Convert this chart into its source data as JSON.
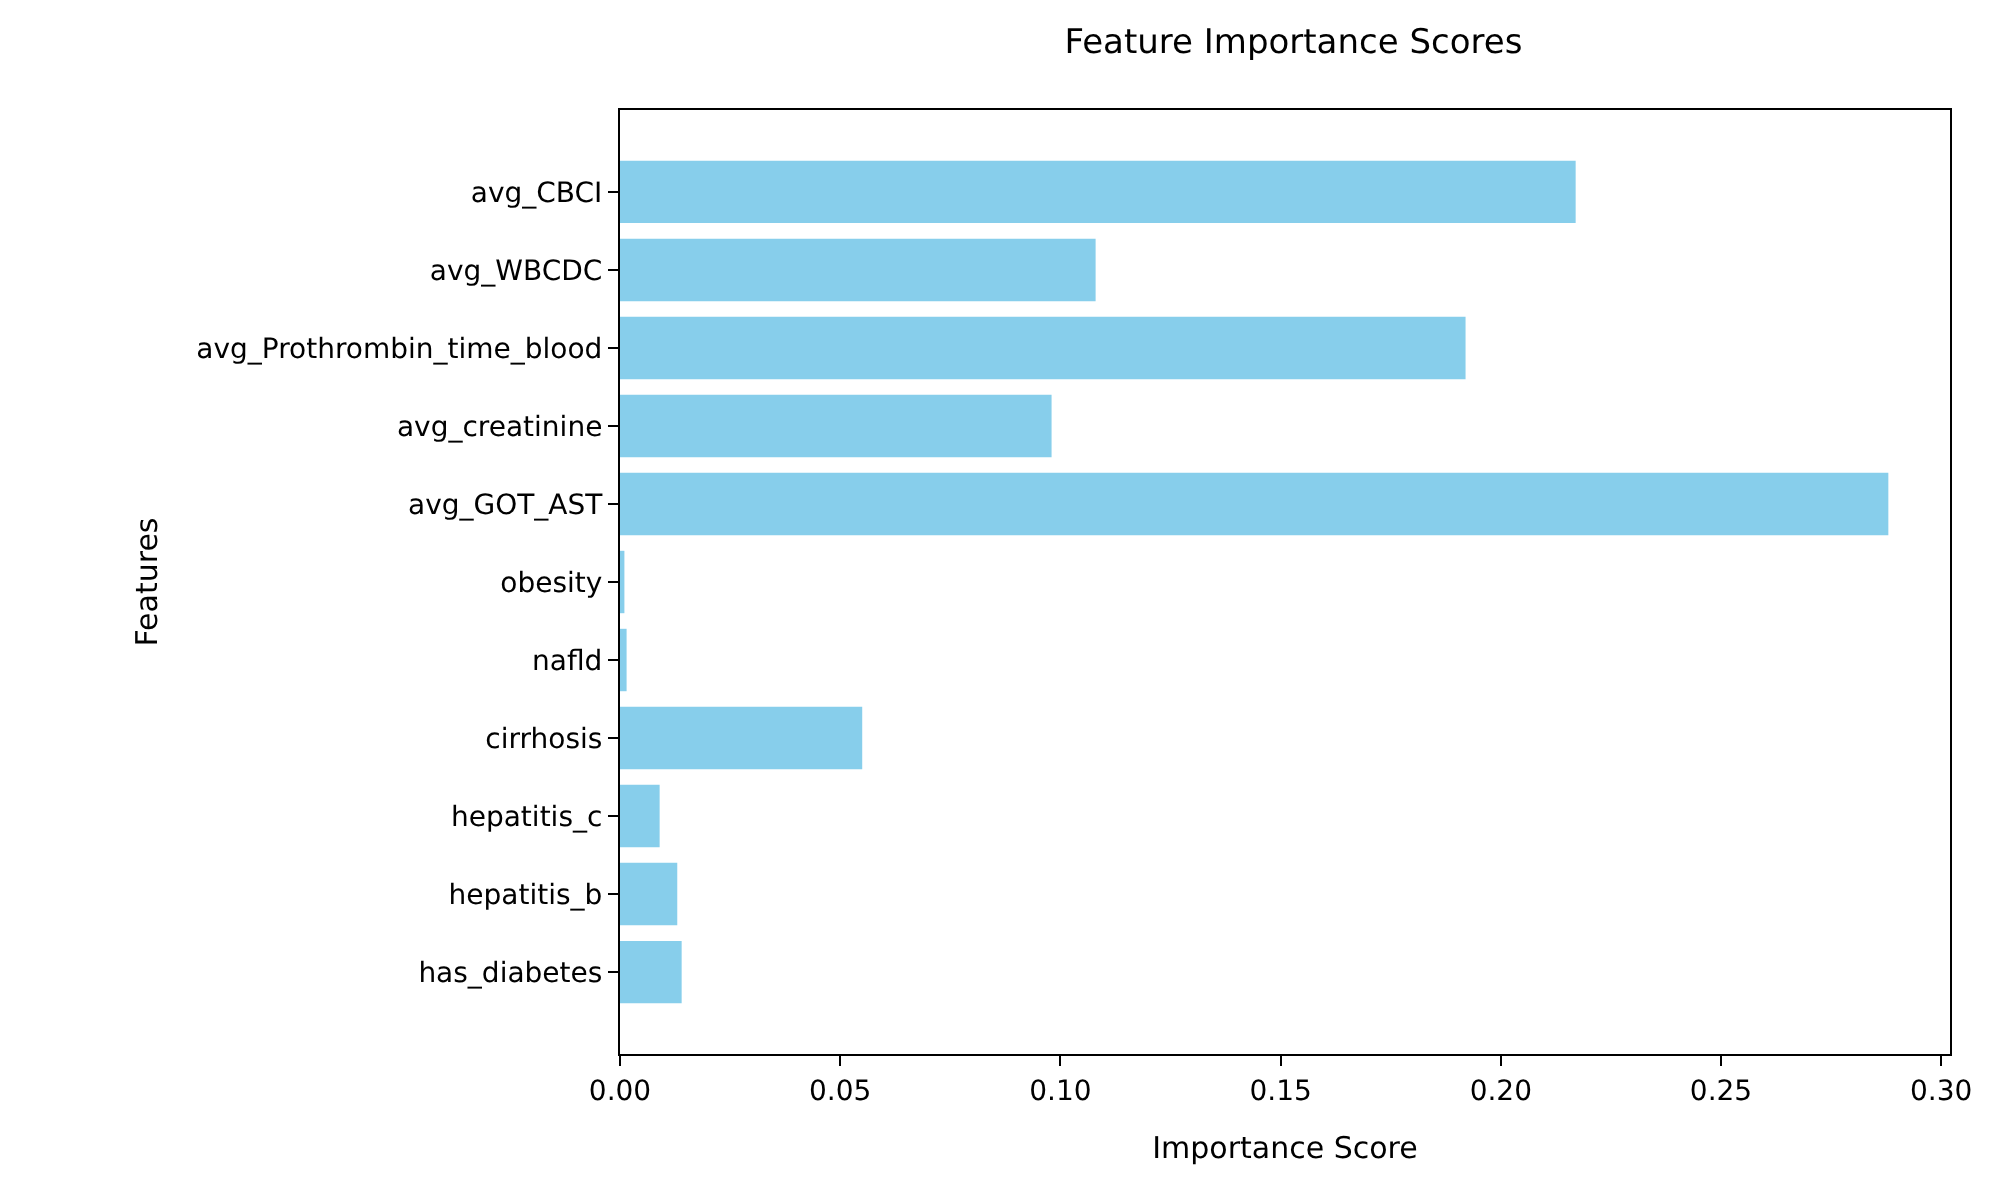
{
  "chart_data": {
    "type": "bar",
    "orientation": "horizontal",
    "title": "Feature Importance Scores",
    "xlabel": "Importance Score",
    "ylabel": "Features",
    "categories": [
      "avg_CBCI",
      "avg_WBCDC",
      "avg_Prothrombin_time_blood",
      "avg_creatinine",
      "avg_GOT_AST",
      "obesity",
      "nafld",
      "cirrhosis",
      "hepatitis_c",
      "hepatitis_b",
      "has_diabetes"
    ],
    "values": [
      0.217,
      0.108,
      0.192,
      0.098,
      0.288,
      0.001,
      0.0015,
      0.055,
      0.009,
      0.013,
      0.014
    ],
    "color": "#87ceeb",
    "xlim": [
      0,
      0.302
    ],
    "xticks": [
      {
        "value": 0,
        "label": "0.00"
      },
      {
        "value": 0.05,
        "label": "0.05"
      },
      {
        "value": 0.1,
        "label": "0.10"
      },
      {
        "value": 0.15,
        "label": "0.15"
      },
      {
        "value": 0.2,
        "label": "0.20"
      },
      {
        "value": 0.25,
        "label": "0.25"
      },
      {
        "value": 0.3,
        "label": "0.30"
      }
    ],
    "legend": false
  }
}
